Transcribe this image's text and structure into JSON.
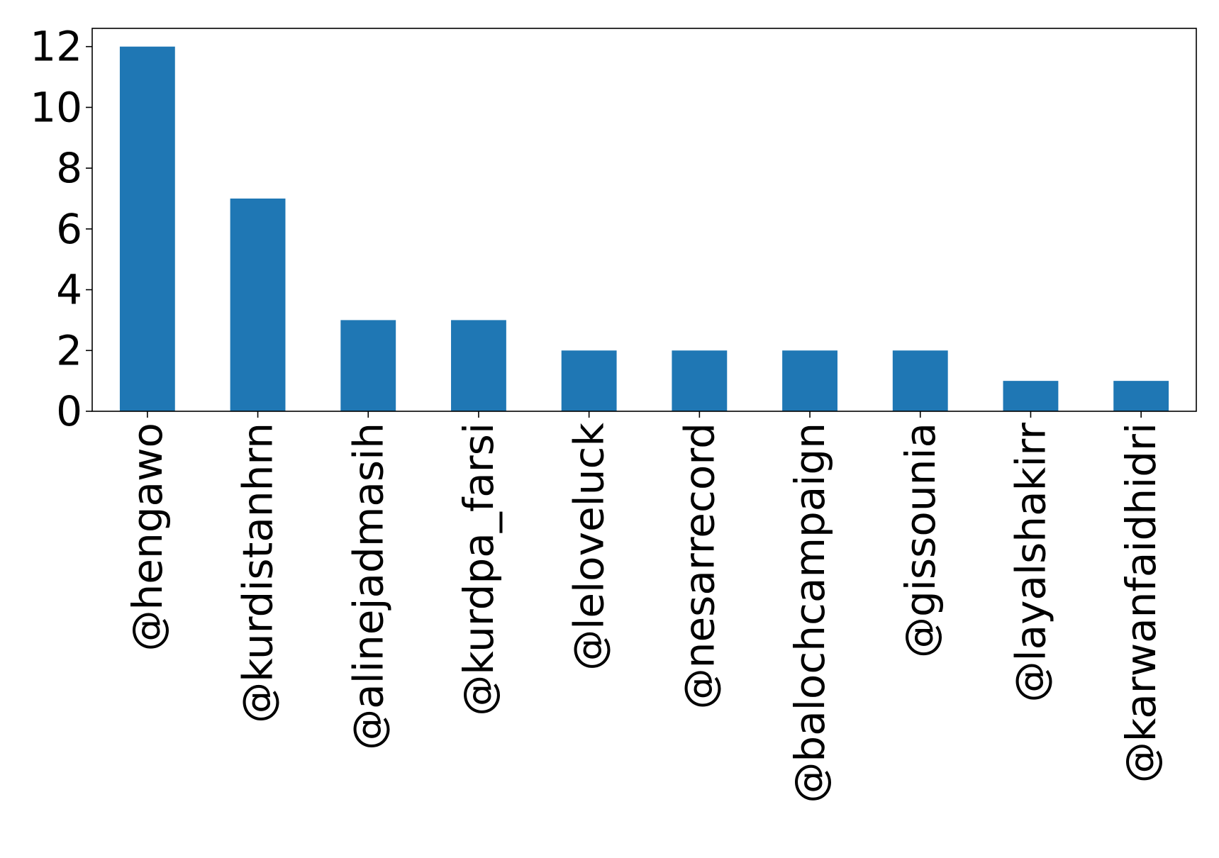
{
  "chart_data": {
    "type": "bar",
    "title": "",
    "xlabel": "",
    "ylabel": "",
    "categories": [
      "@hengawo",
      "@kurdistanhrn",
      "@alinejadmasih",
      "@kurdpa_farsi",
      "@leloveluck",
      "@nesarrecord",
      "@balochcampaign",
      "@gissounia",
      "@layalshakirr",
      "@karwanfaidhidri"
    ],
    "values": [
      12,
      7,
      3,
      3,
      2,
      2,
      2,
      2,
      1,
      1
    ],
    "ylim": [
      0,
      12.6
    ],
    "yticks": [
      0,
      2,
      4,
      6,
      8,
      10,
      12
    ],
    "grid": false,
    "legend": "none",
    "colors": {
      "bar": "#1f77b4",
      "axis": "#000000",
      "background": "#ffffff"
    }
  }
}
